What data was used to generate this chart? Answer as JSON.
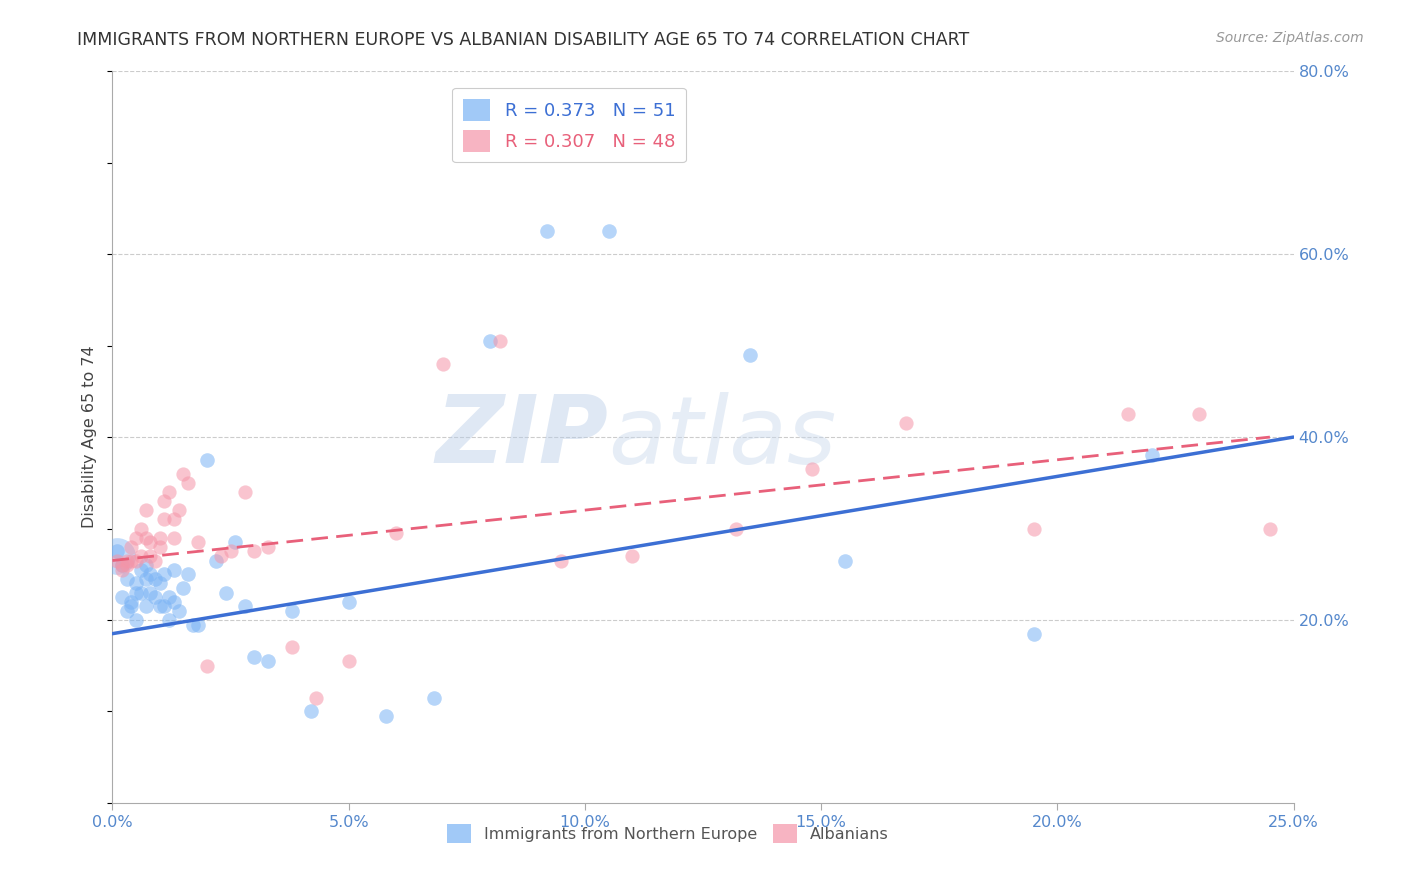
{
  "title": "IMMIGRANTS FROM NORTHERN EUROPE VS ALBANIAN DISABILITY AGE 65 TO 74 CORRELATION CHART",
  "source": "Source: ZipAtlas.com",
  "ylabel": "Disability Age 65 to 74",
  "xlim": [
    0.0,
    0.25
  ],
  "ylim": [
    0.0,
    0.8
  ],
  "xticks": [
    0.0,
    0.05,
    0.1,
    0.15,
    0.2,
    0.25
  ],
  "yticks": [
    0.2,
    0.4,
    0.6,
    0.8
  ],
  "ytick_labels": [
    "20.0%",
    "40.0%",
    "60.0%",
    "80.0%"
  ],
  "xtick_labels": [
    "0.0%",
    "5.0%",
    "10.0%",
    "15.0%",
    "20.0%",
    "25.0%"
  ],
  "legend1_label": "R = 0.373   N = 51",
  "legend2_label": "R = 0.307   N = 48",
  "blue_color": "#7ab3f5",
  "pink_color": "#f595a8",
  "blue_line_color": "#3c6fd4",
  "pink_line_color": "#e8607a",
  "watermark_zip": "ZIP",
  "watermark_atlas": "atlas",
  "blue_scatter_x": [
    0.001,
    0.002,
    0.002,
    0.003,
    0.003,
    0.004,
    0.004,
    0.005,
    0.005,
    0.005,
    0.006,
    0.006,
    0.007,
    0.007,
    0.007,
    0.008,
    0.008,
    0.009,
    0.009,
    0.01,
    0.01,
    0.011,
    0.011,
    0.012,
    0.012,
    0.013,
    0.013,
    0.014,
    0.015,
    0.016,
    0.017,
    0.018,
    0.02,
    0.022,
    0.024,
    0.026,
    0.028,
    0.03,
    0.033,
    0.038,
    0.042,
    0.05,
    0.058,
    0.068,
    0.08,
    0.092,
    0.105,
    0.135,
    0.155,
    0.195,
    0.22
  ],
  "blue_scatter_y": [
    0.275,
    0.26,
    0.225,
    0.245,
    0.21,
    0.22,
    0.215,
    0.24,
    0.23,
    0.2,
    0.23,
    0.255,
    0.26,
    0.245,
    0.215,
    0.25,
    0.23,
    0.225,
    0.245,
    0.215,
    0.24,
    0.215,
    0.25,
    0.225,
    0.2,
    0.22,
    0.255,
    0.21,
    0.235,
    0.25,
    0.195,
    0.195,
    0.375,
    0.265,
    0.23,
    0.285,
    0.215,
    0.16,
    0.155,
    0.21,
    0.1,
    0.22,
    0.095,
    0.115,
    0.505,
    0.625,
    0.625,
    0.49,
    0.265,
    0.185,
    0.38
  ],
  "blue_scatter_sizes": [
    30,
    30,
    30,
    30,
    30,
    30,
    30,
    30,
    30,
    30,
    30,
    30,
    30,
    30,
    30,
    30,
    30,
    30,
    30,
    30,
    30,
    30,
    30,
    30,
    30,
    30,
    30,
    30,
    30,
    30,
    30,
    30,
    30,
    30,
    30,
    30,
    30,
    30,
    30,
    30,
    30,
    30,
    30,
    30,
    30,
    30,
    30,
    30,
    30,
    30,
    30
  ],
  "pink_scatter_x": [
    0.001,
    0.002,
    0.002,
    0.003,
    0.003,
    0.004,
    0.004,
    0.005,
    0.005,
    0.006,
    0.006,
    0.007,
    0.007,
    0.008,
    0.008,
    0.009,
    0.01,
    0.01,
    0.011,
    0.011,
    0.012,
    0.013,
    0.013,
    0.014,
    0.015,
    0.016,
    0.018,
    0.02,
    0.023,
    0.025,
    0.028,
    0.03,
    0.033,
    0.038,
    0.043,
    0.05,
    0.06,
    0.07,
    0.082,
    0.095,
    0.11,
    0.132,
    0.148,
    0.168,
    0.195,
    0.215,
    0.23,
    0.245
  ],
  "pink_scatter_y": [
    0.265,
    0.26,
    0.255,
    0.265,
    0.26,
    0.28,
    0.265,
    0.29,
    0.265,
    0.3,
    0.27,
    0.29,
    0.32,
    0.285,
    0.27,
    0.265,
    0.29,
    0.28,
    0.33,
    0.31,
    0.34,
    0.29,
    0.31,
    0.32,
    0.36,
    0.35,
    0.285,
    0.15,
    0.27,
    0.275,
    0.34,
    0.275,
    0.28,
    0.17,
    0.115,
    0.155,
    0.295,
    0.48,
    0.505,
    0.265,
    0.27,
    0.3,
    0.365,
    0.415,
    0.3,
    0.425,
    0.425,
    0.3
  ],
  "blue_large_x": [
    0.001
  ],
  "blue_large_y": [
    0.27
  ],
  "blue_large_size": [
    700
  ],
  "blue_line_x": [
    0.0,
    0.25
  ],
  "blue_line_y": [
    0.185,
    0.4
  ],
  "pink_line_x": [
    0.0,
    0.245
  ],
  "pink_line_y": [
    0.265,
    0.4
  ]
}
